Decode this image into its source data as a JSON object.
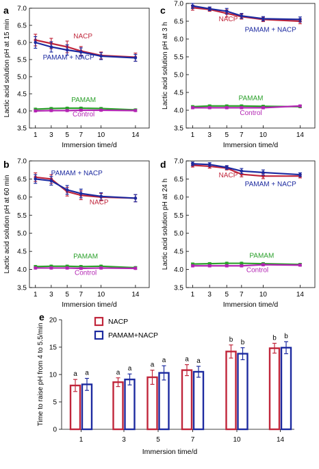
{
  "colors": {
    "NACP": "#c0253a",
    "PAMAM + NACP": "#1c2aa0",
    "PAMAM": "#2aa02a",
    "Control": "#b324b3"
  },
  "chart_data": [
    {
      "panel": "a",
      "type": "line",
      "ylabel": "Lactic acid solution pH at 15 min",
      "xlabel": "Immersion time/d",
      "x": [
        1,
        3,
        5,
        7,
        10,
        14
      ],
      "ylim": [
        3.5,
        7.0
      ],
      "yticks": [
        "3.5",
        "4.0",
        "4.5",
        "5.0",
        "5.5",
        "6.0",
        "6.5",
        "7.0"
      ],
      "series": [
        {
          "name": "NACP",
          "values": [
            6.07,
            5.97,
            5.87,
            5.75,
            5.62,
            5.57
          ],
          "err": [
            0.17,
            0.15,
            0.17,
            0.13,
            0.1,
            0.12
          ]
        },
        {
          "name": "PAMAM + NACP",
          "values": [
            6.0,
            5.87,
            5.78,
            5.72,
            5.6,
            5.55
          ],
          "err": [
            0.17,
            0.15,
            0.15,
            0.12,
            0.1,
            0.1
          ]
        },
        {
          "name": "PAMAM",
          "values": [
            4.05,
            4.07,
            4.08,
            4.08,
            4.07,
            4.03
          ],
          "err": [
            0.03,
            0.03,
            0.03,
            0.03,
            0.03,
            0.03
          ]
        },
        {
          "name": "Control",
          "values": [
            4.0,
            4.01,
            4.01,
            4.02,
            4.02,
            4.01
          ],
          "err": [
            0.03,
            0.03,
            0.03,
            0.03,
            0.03,
            0.03
          ]
        }
      ],
      "labels": [
        {
          "name": "NACP",
          "x": 7.3,
          "y": 6.12
        },
        {
          "name": "PAMAM + NACP",
          "x": 5.2,
          "y": 5.5
        },
        {
          "name": "PAMAM",
          "x": 7.4,
          "y": 4.26
        },
        {
          "name": "Control",
          "x": 7.4,
          "y": 3.84
        }
      ]
    },
    {
      "panel": "c",
      "type": "line",
      "ylabel": "Lactic acid solution pH at 3 h",
      "xlabel": "Immersion time/d",
      "x": [
        1,
        3,
        5,
        7,
        10,
        14
      ],
      "ylim": [
        3.5,
        7.0
      ],
      "yticks": [
        "3.5",
        "4.0",
        "4.5",
        "5.0",
        "5.5",
        "6.0",
        "6.5",
        "7.0"
      ],
      "series": [
        {
          "name": "NACP",
          "values": [
            6.88,
            6.83,
            6.72,
            6.63,
            6.55,
            6.5
          ],
          "err": [
            0.07,
            0.05,
            0.1,
            0.07,
            0.06,
            0.07
          ]
        },
        {
          "name": "PAMAM + NACP",
          "values": [
            6.93,
            6.85,
            6.78,
            6.65,
            6.57,
            6.55
          ],
          "err": [
            0.07,
            0.05,
            0.08,
            0.07,
            0.06,
            0.07
          ]
        },
        {
          "name": "PAMAM",
          "values": [
            4.1,
            4.12,
            4.12,
            4.12,
            4.11,
            4.1
          ],
          "err": [
            0.03,
            0.03,
            0.03,
            0.03,
            0.03,
            0.03
          ]
        },
        {
          "name": "Control",
          "values": [
            4.07,
            4.07,
            4.07,
            4.07,
            4.07,
            4.12
          ],
          "err": [
            0.03,
            0.03,
            0.03,
            0.03,
            0.03,
            0.03
          ]
        }
      ],
      "labels": [
        {
          "name": "NACP",
          "x": 5.2,
          "y": 6.5
        },
        {
          "name": "PAMAM + NACP",
          "x": 10.8,
          "y": 6.2
        },
        {
          "name": "PAMAM",
          "x": 8.3,
          "y": 4.28
        },
        {
          "name": "Control",
          "x": 8.3,
          "y": 3.87
        }
      ]
    },
    {
      "panel": "b",
      "type": "line",
      "ylabel": "Lactic acid solution pH at 60 min",
      "xlabel": "Immersion time/d",
      "x": [
        1,
        3,
        5,
        7,
        10,
        14
      ],
      "ylim": [
        3.5,
        7.0
      ],
      "yticks": [
        "3.5",
        "4.0",
        "4.5",
        "5.0",
        "5.5",
        "6.0",
        "6.5",
        "7.0"
      ],
      "series": [
        {
          "name": "NACP",
          "values": [
            6.55,
            6.5,
            6.15,
            6.05,
            6.0,
            5.97
          ],
          "err": [
            0.12,
            0.12,
            0.12,
            0.12,
            0.1,
            0.1
          ]
        },
        {
          "name": "PAMAM + NACP",
          "values": [
            6.5,
            6.45,
            6.2,
            6.1,
            6.02,
            5.97
          ],
          "err": [
            0.12,
            0.12,
            0.12,
            0.12,
            0.1,
            0.1
          ]
        },
        {
          "name": "PAMAM",
          "values": [
            4.08,
            4.09,
            4.09,
            4.08,
            4.09,
            4.05
          ],
          "err": [
            0.03,
            0.03,
            0.03,
            0.03,
            0.03,
            0.03
          ]
        },
        {
          "name": "Control",
          "values": [
            4.04,
            4.04,
            4.04,
            4.03,
            4.04,
            4.03
          ],
          "err": [
            0.03,
            0.03,
            0.03,
            0.03,
            0.03,
            0.03
          ]
        }
      ],
      "labels": [
        {
          "name": "PAMAM + NACP",
          "x": 6.4,
          "y": 6.6
        },
        {
          "name": "NACP",
          "x": 9.7,
          "y": 5.8
        },
        {
          "name": "PAMAM",
          "x": 7.7,
          "y": 4.3
        },
        {
          "name": "Control",
          "x": 7.7,
          "y": 3.85
        }
      ]
    },
    {
      "panel": "d",
      "type": "line",
      "ylabel": "Lactic acid solution pH at 24 h",
      "xlabel": "Immersion time/d",
      "x": [
        1,
        3,
        5,
        7,
        10,
        14
      ],
      "ylim": [
        3.5,
        7.0
      ],
      "yticks": [
        "3.5",
        "4.0",
        "4.5",
        "5.0",
        "5.5",
        "6.0",
        "6.5",
        "7.0"
      ],
      "series": [
        {
          "name": "NACP",
          "values": [
            6.88,
            6.85,
            6.8,
            6.63,
            6.58,
            6.58
          ],
          "err": [
            0.05,
            0.05,
            0.05,
            0.07,
            0.07,
            0.05
          ]
        },
        {
          "name": "PAMAM + NACP",
          "values": [
            6.92,
            6.9,
            6.82,
            6.72,
            6.68,
            6.62
          ],
          "err": [
            0.05,
            0.05,
            0.05,
            0.07,
            0.07,
            0.05
          ]
        },
        {
          "name": "PAMAM",
          "values": [
            4.15,
            4.16,
            4.17,
            4.17,
            4.16,
            4.14
          ],
          "err": [
            0.03,
            0.03,
            0.03,
            0.03,
            0.03,
            0.03
          ]
        },
        {
          "name": "Control",
          "values": [
            4.1,
            4.1,
            4.1,
            4.1,
            4.13,
            4.12
          ],
          "err": [
            0.03,
            0.03,
            0.03,
            0.03,
            0.03,
            0.03
          ]
        }
      ],
      "labels": [
        {
          "name": "NACP",
          "x": 5.2,
          "y": 6.55
        },
        {
          "name": "PAMAM + NACP",
          "x": 10.8,
          "y": 6.3
        },
        {
          "name": "PAMAM",
          "x": 9.8,
          "y": 4.32
        },
        {
          "name": "Control",
          "x": 9.2,
          "y": 3.93
        }
      ]
    },
    {
      "panel": "e",
      "type": "bar",
      "ylabel": "Time to raise pH from 4 to 5.5/min",
      "xlabel": "Immersion time/d",
      "categories": [
        "1",
        "3",
        "5",
        "7",
        "10",
        "14"
      ],
      "ylim": [
        0,
        20
      ],
      "yticks": [
        "0",
        "5",
        "10",
        "15",
        "20"
      ],
      "series": [
        {
          "name": "NACP",
          "values": [
            8.0,
            8.6,
            9.5,
            10.8,
            14.2,
            14.8
          ],
          "err": [
            1.1,
            0.8,
            1.3,
            1.0,
            1.2,
            0.9
          ]
        },
        {
          "name": "PAMAM+NACP",
          "values": [
            8.2,
            9.1,
            10.3,
            10.5,
            13.8,
            14.9
          ],
          "err": [
            1.1,
            1.0,
            1.3,
            1.0,
            1.1,
            1.1
          ]
        }
      ],
      "significance": [
        [
          "a",
          "a"
        ],
        [
          "a",
          "a"
        ],
        [
          "a",
          "a"
        ],
        [
          "a",
          "a"
        ],
        [
          "b",
          "b"
        ],
        [
          "b",
          "b"
        ]
      ]
    }
  ]
}
